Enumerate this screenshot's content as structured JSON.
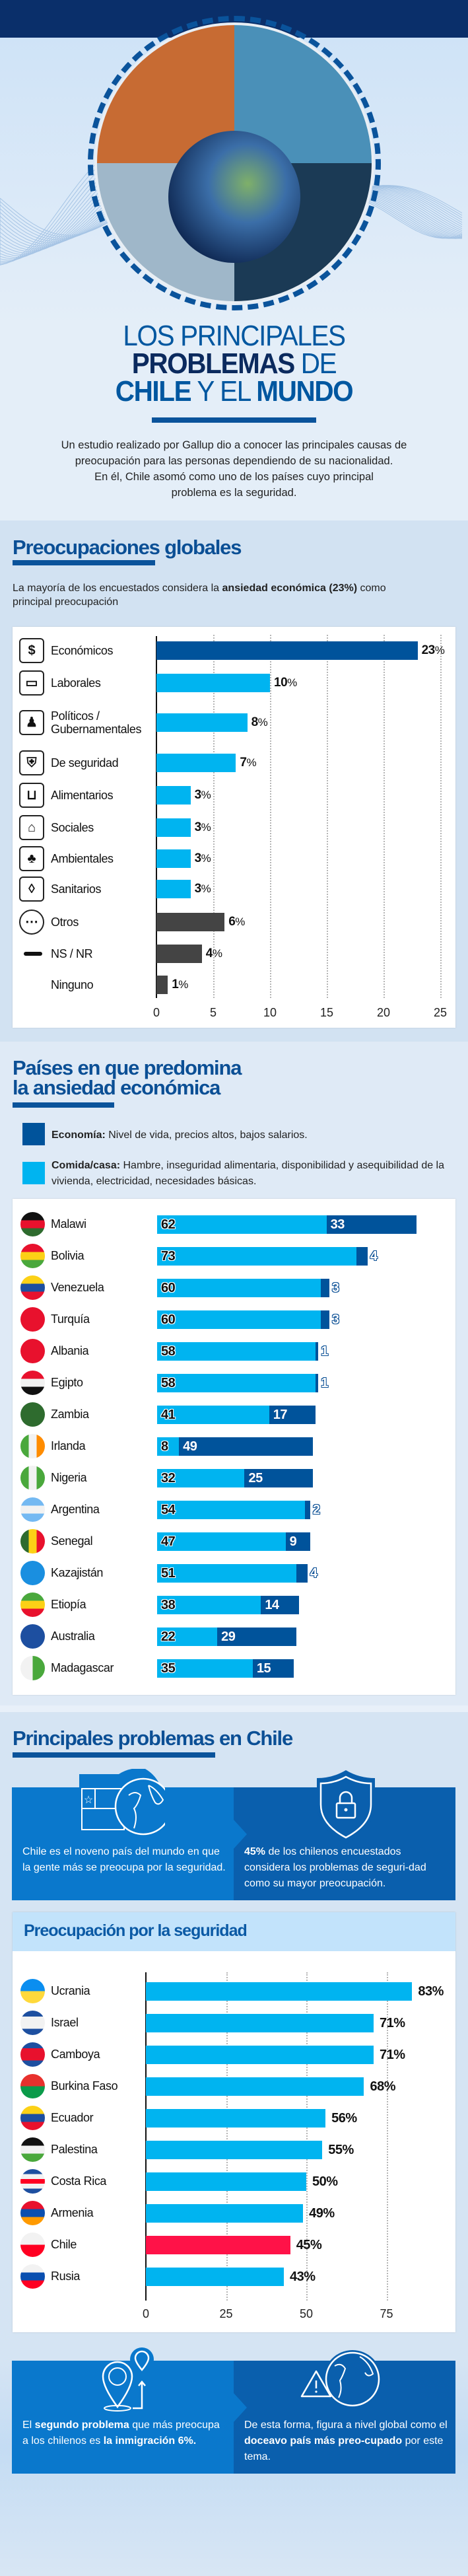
{
  "colors": {
    "economia": "#00539b",
    "comida": "#00b4f0",
    "otros": "#444444",
    "chile": "#ff1248",
    "title_dark": "#0b2a5e",
    "title_blue": "#0057a0"
  },
  "hero": {
    "title_line1": "LOS PRINCIPALES",
    "title_line2_bold": "PROBLEMAS",
    "title_line2_rest": "DE",
    "title_line3_bold1": "CHILE",
    "title_line3_mid": "Y EL",
    "title_line3_bold2": "MUNDO",
    "intro": [
      "Un estudio realizado por Gallup dio a conocer las principales causas de",
      "preocupación para las personas dependiendo de su nacionalidad.",
      "En él, Chile asomó como uno de los países cuyo principal",
      "problema es la seguridad."
    ]
  },
  "global": {
    "heading": "Preocupaciones globales",
    "intro": [
      {
        "t": "La mayoría de los encuestados considera la "
      },
      {
        "t": "ansiedad económica (23%)",
        "b": true
      },
      {
        "t": " como principal preocupación"
      }
    ]
  },
  "economic": {
    "heading_line1": "Países en que predomina",
    "heading_line2": "la ansiedad económica",
    "legend": [
      {
        "bold": "Economía:",
        "text": " Nivel de vida, precios altos, bajos salarios."
      },
      {
        "bold": "Comida/casa:",
        "text": " Hambre, inseguridad alimentaria, disponibilidad y asequibilidad de la vivienda, electricidad, necesidades básicas."
      }
    ]
  },
  "chile": {
    "heading": "Principales problemas en Chile",
    "box1": [
      {
        "t": "Chile es el noveno país del mundo en que la gente más se preocupa por la seguridad."
      }
    ],
    "box2": [
      {
        "t": "45%",
        "b": true
      },
      {
        "t": " de los chilenos encuestados considera los problemas de seguri-dad como su mayor preocupación."
      }
    ],
    "security_heading": "Preocupación por la seguridad",
    "box3": [
      {
        "t": "El "
      },
      {
        "t": "segundo problema",
        "b": true
      },
      {
        "t": " que más preocupa a los chilenos es "
      },
      {
        "t": "la inmigración 6%.",
        "b": true
      }
    ],
    "box4": [
      {
        "t": "De esta forma, figura a nivel global como el "
      },
      {
        "t": "doceavo país más preo-cupado",
        "b": true
      },
      {
        "t": " por este tema."
      }
    ]
  },
  "chart_data": [
    {
      "type": "bar",
      "title": "Preocupaciones globales",
      "orientation": "horizontal",
      "unit": "%",
      "xlim": [
        0,
        25
      ],
      "xticks": [
        0,
        5,
        10,
        15,
        20,
        25
      ],
      "grid": true,
      "categories": [
        "Económicos",
        "Laborales",
        "Políticos / Gubernamentales",
        "De seguridad",
        "Alimentarios",
        "Sociales",
        "Ambientales",
        "Sanitarios",
        "Otros",
        "NS / NR",
        "Ninguno"
      ],
      "values": [
        23,
        10,
        8,
        7,
        3,
        3,
        3,
        3,
        6,
        4,
        1
      ],
      "icons": [
        "money-icon",
        "briefcase-icon",
        "politician-icon",
        "shield-lock-icon",
        "grocery-bag-icon",
        "house-icon",
        "trees-icon",
        "drops-icon",
        "more-dots-icon",
        "dash-icon",
        ""
      ],
      "bar_colors": [
        "#00539b",
        "#00b4f0",
        "#00b4f0",
        "#00b4f0",
        "#00b4f0",
        "#00b4f0",
        "#00b4f0",
        "#00b4f0",
        "#444444",
        "#444444",
        "#444444"
      ]
    },
    {
      "type": "bar",
      "stacked": true,
      "title": "Países en que predomina la ansiedad económica",
      "orientation": "horizontal",
      "categories": [
        "Malawi",
        "Bolivia",
        "Venezuela",
        "Turquía",
        "Albania",
        "Egipto",
        "Zambia",
        "Irlanda",
        "Nigeria",
        "Argentina",
        "Senegal",
        "Kazajistán",
        "Etiopía",
        "Australia",
        "Madagascar"
      ],
      "series": [
        {
          "name": "Comida/casa",
          "color": "#00b4f0",
          "values": [
            62,
            73,
            60,
            60,
            58,
            58,
            41,
            8,
            32,
            54,
            47,
            51,
            38,
            22,
            35
          ]
        },
        {
          "name": "Economía",
          "color": "#00539b",
          "values": [
            33,
            4,
            3,
            3,
            1,
            1,
            17,
            49,
            25,
            2,
            9,
            4,
            14,
            29,
            15
          ]
        }
      ],
      "flags": [
        [
          "h",
          "#111",
          "#e8112d",
          "#2e6b2e"
        ],
        [
          "h",
          "#e8112d",
          "#fcd116",
          "#4aa83c"
        ],
        [
          "h",
          "#fcd116",
          "#1d4fa0",
          "#e8112d"
        ],
        [
          "h",
          "#e8112d"
        ],
        [
          "h",
          "#e8112d"
        ],
        [
          "h",
          "#e8112d",
          "#f2f2f2",
          "#111"
        ],
        [
          "h",
          "#2e6b2e"
        ],
        [
          "v",
          "#4aa83c",
          "#f2f2f2",
          "#ff8c00"
        ],
        [
          "v",
          "#4aa83c",
          "#f2f2f2",
          "#4aa83c"
        ],
        [
          "h",
          "#74b9f2",
          "#f2f2f2",
          "#74b9f2"
        ],
        [
          "v",
          "#2e6b2e",
          "#fcd116",
          "#e8112d"
        ],
        [
          "h",
          "#1a8fe0"
        ],
        [
          "h",
          "#4aa83c",
          "#fcd116",
          "#e8112d"
        ],
        [
          "h",
          "#1d4fa0"
        ],
        [
          "v",
          "#f2f2f2",
          "#4aa83c"
        ]
      ]
    },
    {
      "type": "bar",
      "title": "Preocupación por la seguridad",
      "orientation": "horizontal",
      "unit": "%",
      "xlim": [
        0,
        90
      ],
      "xticks": [
        0,
        25,
        50,
        75
      ],
      "grid": true,
      "categories": [
        "Ucrania",
        "Israel",
        "Camboya",
        "Burkina Faso",
        "Ecuador",
        "Palestina",
        "Costa Rica",
        "Armenia",
        "Chile",
        "Rusia"
      ],
      "values": [
        83,
        71,
        71,
        68,
        56,
        55,
        50,
        49,
        45,
        43
      ],
      "highlight": "Chile",
      "flags": [
        [
          "h",
          "#0a8ef0",
          "#ffd93b"
        ],
        [
          "h",
          "#1d4fa0",
          "#f2f2f2",
          "#f2f2f2",
          "#1d4fa0"
        ],
        [
          "h",
          "#1d4fa0",
          "#e8112d",
          "#e8112d",
          "#1d4fa0"
        ],
        [
          "h",
          "#e8312d",
          "#0b9b4a"
        ],
        [
          "h",
          "#fcd116",
          "#1d4fa0",
          "#e8112d"
        ],
        [
          "h",
          "#111",
          "#f2f2f2",
          "#4aa83c"
        ],
        [
          "h",
          "#1d4fa0",
          "#f2f2f2",
          "#ff0022",
          "#f2f2f2",
          "#1d4fa0"
        ],
        [
          "h",
          "#e8112d",
          "#0a4fb0",
          "#ff9a00"
        ],
        [
          "h",
          "#f2f2f2",
          "#ff0022"
        ],
        [
          "h",
          "#f2f2f2",
          "#0a4fb0",
          "#ff0022"
        ]
      ]
    }
  ]
}
